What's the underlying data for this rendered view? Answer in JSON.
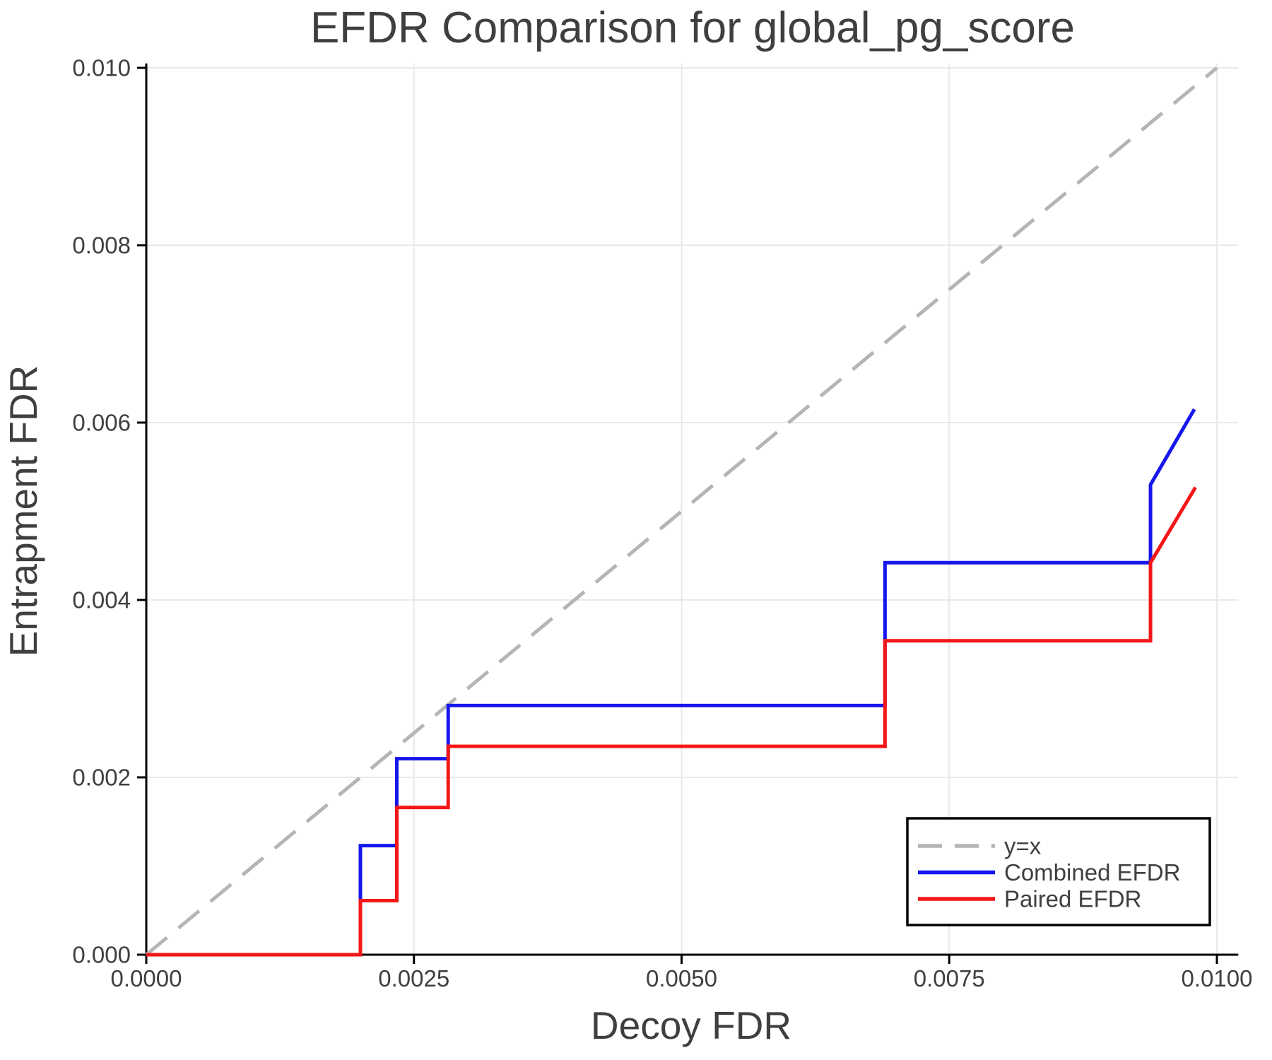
{
  "page": {
    "background": "#ffffff"
  },
  "colors": {
    "text": "#3f3f3f",
    "grid": "#e9e9e9",
    "spine": "#000000",
    "legend_border": "#000000",
    "background": "#ffffff",
    "reference_line": "#b5b5b5",
    "combined_efdr": "#1616ee",
    "paired_efdr": "#f31717"
  },
  "chart_data": {
    "type": "line",
    "title": "EFDR Comparison for global_pg_score",
    "xlabel": "Decoy FDR",
    "ylabel": "Entrapment FDR",
    "xlim": [
      0.0,
      0.0102
    ],
    "ylim": [
      0.0,
      0.01005
    ],
    "grid": true,
    "x_ticks": {
      "values": [
        0.0,
        0.0025,
        0.005,
        0.0075,
        0.01
      ],
      "labels": [
        "0.0000",
        "0.0025",
        "0.0050",
        "0.0075",
        "0.0100"
      ]
    },
    "y_ticks": {
      "values": [
        0.0,
        0.002,
        0.004,
        0.006,
        0.008,
        0.01
      ],
      "labels": [
        "0.000",
        "0.002",
        "0.004",
        "0.006",
        "0.008",
        "0.010"
      ]
    },
    "legend_position": "lower-right-inset",
    "series": [
      {
        "name": "y=x",
        "kind": "reference",
        "style": "dashed",
        "color": "#b5b5b5",
        "points": [
          [
            0.0,
            0.0
          ],
          [
            0.01,
            0.01
          ]
        ]
      },
      {
        "name": "Combined EFDR",
        "kind": "step-curve",
        "style": "solid",
        "color": "#1616ee",
        "points": [
          [
            0.0,
            0.0
          ],
          [
            0.002,
            0.0
          ],
          [
            0.002,
            0.00123
          ],
          [
            0.00234,
            0.00123
          ],
          [
            0.00234,
            0.00221
          ],
          [
            0.00282,
            0.00221
          ],
          [
            0.00282,
            0.00281
          ],
          [
            0.0069,
            0.00281
          ],
          [
            0.0069,
            0.00442
          ],
          [
            0.00938,
            0.00442
          ],
          [
            0.00938,
            0.0053
          ],
          [
            0.00979,
            0.00615
          ]
        ]
      },
      {
        "name": "Paired EFDR",
        "kind": "step-curve",
        "style": "solid",
        "color": "#f31717",
        "points": [
          [
            0.0,
            0.0
          ],
          [
            0.002,
            0.0
          ],
          [
            0.002,
            0.00061
          ],
          [
            0.00234,
            0.00061
          ],
          [
            0.00234,
            0.00166
          ],
          [
            0.00282,
            0.00166
          ],
          [
            0.00282,
            0.00235
          ],
          [
            0.0069,
            0.00235
          ],
          [
            0.0069,
            0.00354
          ],
          [
            0.00938,
            0.00354
          ],
          [
            0.00938,
            0.00442
          ],
          [
            0.0098,
            0.00527
          ]
        ]
      }
    ]
  }
}
